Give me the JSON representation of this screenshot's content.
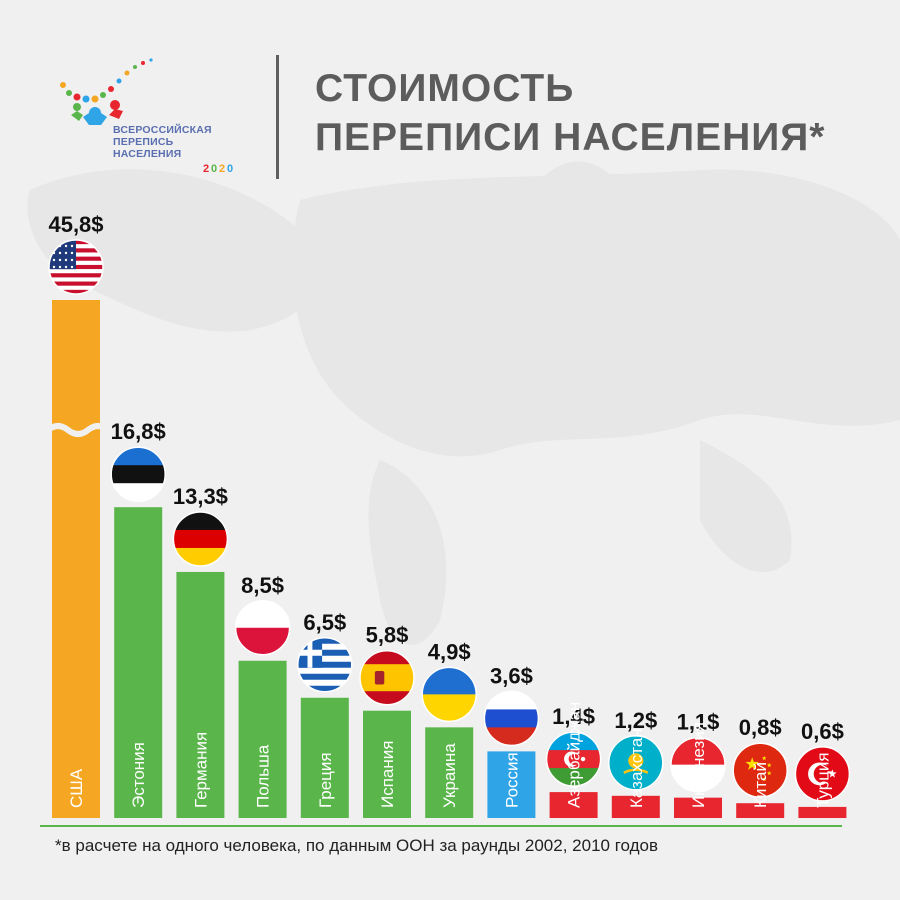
{
  "logo": {
    "line1": "ВСЕРОССИЙСКАЯ",
    "line2": "ПЕРЕПИСЬ",
    "line3": "НАСЕЛЕНИЯ",
    "year": "2020"
  },
  "header": {
    "title_line1": "СТОИМОСТЬ",
    "title_line2": "ПЕРЕПИСИ НАСЕЛЕНИЯ*"
  },
  "colors": {
    "usa": "#f5a623",
    "europe": "#5ab54a",
    "russia": "#2fa4e7",
    "asia": "#e8262f",
    "baseline": "#5ab54a",
    "background": "#f0f0f0"
  },
  "chart_data": {
    "type": "bar",
    "title": "СТОИМОСТЬ ПЕРЕПИСИ НАСЕЛЕНИЯ*",
    "unit": "$",
    "categories": [
      "США",
      "Эстония",
      "Германия",
      "Польша",
      "Греция",
      "Испания",
      "Украина",
      "Россия",
      "Азербайджан",
      "Казахстан",
      "Индонезия",
      "Китай",
      "Турция"
    ],
    "values": [
      45.8,
      16.8,
      13.3,
      8.5,
      6.5,
      5.8,
      4.9,
      3.6,
      1.4,
      1.2,
      1.1,
      0.8,
      0.6
    ],
    "value_labels": [
      "45,8$",
      "16,8$",
      "13,3$",
      "8,5$",
      "6,5$",
      "5,8$",
      "4,9$",
      "3,6$",
      "1,4$",
      "1,2$",
      "1,1$",
      "0,8$",
      "0,6$"
    ],
    "bar_color_groups": [
      "usa",
      "europe",
      "europe",
      "europe",
      "europe",
      "europe",
      "europe",
      "russia",
      "asia",
      "asia",
      "asia",
      "asia",
      "asia"
    ],
    "flag_icons": [
      "usa-flag-icon",
      "estonia-flag-icon",
      "germany-flag-icon",
      "poland-flag-icon",
      "greece-flag-icon",
      "spain-flag-icon",
      "ukraine-flag-icon",
      "russia-flag-icon",
      "azerbaijan-flag-icon",
      "kazakhstan-flag-icon",
      "indonesia-flag-icon",
      "china-flag-icon",
      "turkey-flag-icon"
    ],
    "axis_break_on": "США",
    "grid": false,
    "xlabel": "",
    "ylabel": ""
  },
  "footnote": "*в расчете на одного человека, по данным ООН за раунды 2002, 2010 годов"
}
